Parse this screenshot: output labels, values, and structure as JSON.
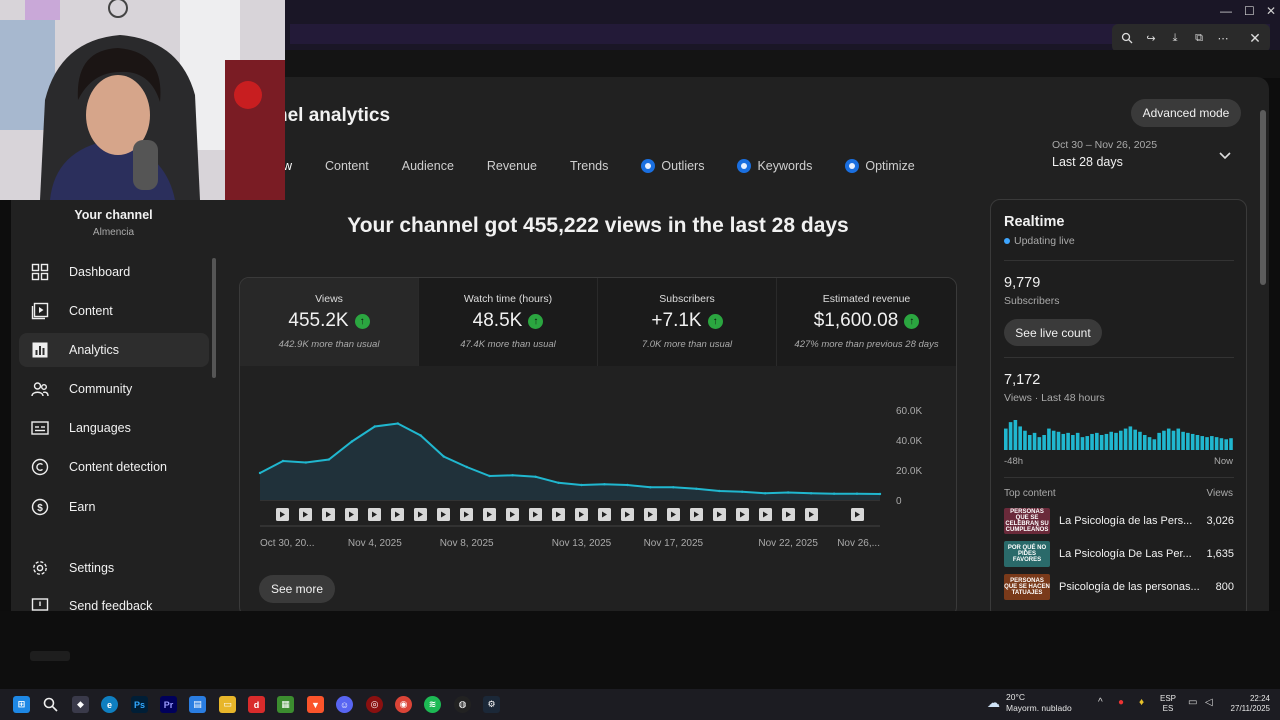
{
  "studio": {
    "page_title": "nel analytics",
    "advanced_mode": "Advanced mode",
    "tabs": [
      {
        "label": "ew",
        "active": true
      },
      {
        "label": "Content"
      },
      {
        "label": "Audience"
      },
      {
        "label": "Revenue"
      },
      {
        "label": "Trends"
      },
      {
        "label": "Outliers",
        "icon": "sparkle-icon"
      },
      {
        "label": "Keywords",
        "icon": "sparkle-icon"
      },
      {
        "label": "Optimize",
        "icon": "sparkle-icon"
      }
    ],
    "date_range": {
      "range": "Oct 30 – Nov 26, 2025",
      "label": "Last 28 days"
    }
  },
  "sidebar": {
    "channel_name": "Your channel",
    "channel_handle": "Almencia",
    "items": [
      {
        "label": "Dashboard",
        "icon": "dashboard-icon"
      },
      {
        "label": "Content",
        "icon": "content-icon"
      },
      {
        "label": "Analytics",
        "icon": "analytics-icon",
        "active": true
      },
      {
        "label": "Community",
        "icon": "community-icon"
      },
      {
        "label": "Languages",
        "icon": "subtitles-icon"
      },
      {
        "label": "Content detection",
        "icon": "copyright-icon"
      },
      {
        "label": "Earn",
        "icon": "dollar-icon"
      },
      {
        "label": "Settings",
        "icon": "gear-icon"
      },
      {
        "label": "Send feedback",
        "icon": "feedback-icon"
      }
    ]
  },
  "main": {
    "headline": "Your channel got 455,222 views in the last 28 days",
    "metrics": [
      {
        "label": "Views",
        "value": "455.2K",
        "note": "442.9K more than usual"
      },
      {
        "label": "Watch time (hours)",
        "value": "48.5K",
        "note": "47.4K more than usual"
      },
      {
        "label": "Subscribers",
        "value": "+7.1K",
        "note": "7.0K more than usual"
      },
      {
        "label": "Estimated revenue",
        "value": "$1,600.08",
        "note": "427% more than previous 28 days"
      }
    ],
    "see_more": "See more"
  },
  "chart_data": {
    "type": "area",
    "x": [
      "Oct 30",
      "Oct 31",
      "Nov 1",
      "Nov 2",
      "Nov 3",
      "Nov 4",
      "Nov 5",
      "Nov 6",
      "Nov 7",
      "Nov 8",
      "Nov 9",
      "Nov 10",
      "Nov 11",
      "Nov 12",
      "Nov 13",
      "Nov 14",
      "Nov 15",
      "Nov 16",
      "Nov 17",
      "Nov 18",
      "Nov 19",
      "Nov 20",
      "Nov 21",
      "Nov 22",
      "Nov 23",
      "Nov 24",
      "Nov 25",
      "Nov 26"
    ],
    "values": [
      18000,
      26000,
      25000,
      27000,
      39000,
      49000,
      51000,
      43000,
      29000,
      22000,
      16000,
      16500,
      15500,
      11500,
      10000,
      10500,
      10000,
      8500,
      8500,
      7500,
      6000,
      5500,
      4500,
      5000,
      4500,
      4200,
      4200,
      4000
    ],
    "x_tick_labels": [
      "Oct 30, 20...",
      "Nov 4, 2025",
      "Nov 8, 2025",
      "Nov 13, 2025",
      "Nov 17, 2025",
      "Nov 22, 2025",
      "Nov 26,..."
    ],
    "x_tick_index": [
      0,
      5,
      9,
      14,
      18,
      23,
      27
    ],
    "y_tick_labels": [
      "60.0K",
      "40.0K",
      "20.0K",
      "0"
    ],
    "y_ticks": [
      60000,
      40000,
      20000,
      0
    ],
    "ylim": [
      0,
      60000
    ],
    "color": "#20b7cf",
    "markers_count": 26
  },
  "realtime": {
    "title": "Realtime",
    "status": "Updating live",
    "subscribers": "9,779",
    "subscribers_label": "Subscribers",
    "live_count_btn": "See live count",
    "views": "7,172",
    "views_label": "Views · Last 48 hours",
    "axis_start": "-48h",
    "axis_end": "Now",
    "bars": [
      20,
      26,
      28,
      22,
      18,
      14,
      16,
      12,
      14,
      20,
      18,
      17,
      15,
      16,
      14,
      16,
      12,
      13,
      15,
      16,
      14,
      15,
      17,
      16,
      18,
      20,
      22,
      19,
      17,
      14,
      12,
      10,
      16,
      18,
      20,
      18,
      20,
      17,
      16,
      15,
      14,
      13,
      12,
      13,
      12,
      11,
      10,
      11
    ],
    "top_content_label": "Top content",
    "top_views_label": "Views",
    "top_content": [
      {
        "title": "La Psicología de las Pers...",
        "views": "3,026",
        "thumb": "PERSONAS QUE SE CELEBRAN SU CUMPLEAÑOS",
        "color": "#6a2a3a"
      },
      {
        "title": "La Psicología De Las Per...",
        "views": "1,635",
        "thumb": "POR QUÉ NO PIDES FAVORES",
        "color": "#2a6a6a"
      },
      {
        "title": "Psicología de las personas...",
        "views": "800",
        "thumb": "PERSONAS QUE SE HACEN TATUAJES",
        "color": "#7a3a1a"
      }
    ]
  },
  "taskbar": {
    "weather_temp": "20°C",
    "weather_desc": "Mayorm. nublado",
    "lang_1": "ESP",
    "lang_2": "ES",
    "time": "22:24",
    "date": "27/11/2025"
  },
  "colors": {
    "accent": "#3ea6ff",
    "chart_line": "#20b7cf",
    "up": "#2ba640"
  }
}
